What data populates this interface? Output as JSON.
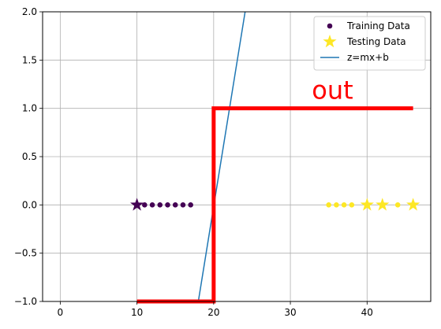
{
  "chart_data": {
    "type": "scatter",
    "title": "",
    "xlabel": "",
    "ylabel": "",
    "xlim": [
      -2.3,
      48.3
    ],
    "ylim": [
      -1.0,
      2.0
    ],
    "x_ticks": [
      0,
      10,
      20,
      30,
      40
    ],
    "x_tick_labels": [
      "0",
      "10",
      "20",
      "30",
      "40"
    ],
    "y_ticks": [
      -1.0,
      -0.5,
      0.0,
      0.5,
      1.0,
      1.5,
      2.0
    ],
    "y_tick_labels": [
      "−1.0",
      "−0.5",
      "0.0",
      "0.5",
      "1.0",
      "1.5",
      "2.0"
    ],
    "grid": true,
    "legend_position": "top-right",
    "series": [
      {
        "name": "Training Data",
        "kind": "scatter",
        "marker": "circle",
        "points": [
          {
            "x": 11,
            "y": 0,
            "color": "#440154"
          },
          {
            "x": 12,
            "y": 0,
            "color": "#440154"
          },
          {
            "x": 13,
            "y": 0,
            "color": "#440154"
          },
          {
            "x": 14,
            "y": 0,
            "color": "#440154"
          },
          {
            "x": 15,
            "y": 0,
            "color": "#440154"
          },
          {
            "x": 16,
            "y": 0,
            "color": "#440154"
          },
          {
            "x": 17,
            "y": 0,
            "color": "#440154"
          },
          {
            "x": 35,
            "y": 0,
            "color": "#fde725"
          },
          {
            "x": 36,
            "y": 0,
            "color": "#fde725"
          },
          {
            "x": 37,
            "y": 0,
            "color": "#fde725"
          },
          {
            "x": 38,
            "y": 0,
            "color": "#fde725"
          },
          {
            "x": 44,
            "y": 0,
            "color": "#fde725"
          }
        ],
        "legend_color": "#440154"
      },
      {
        "name": "Testing Data",
        "kind": "scatter",
        "marker": "star",
        "points": [
          {
            "x": 10,
            "y": 0,
            "color": "#440154"
          },
          {
            "x": 40,
            "y": 0,
            "color": "#fde725"
          },
          {
            "x": 42,
            "y": 0,
            "color": "#fde725"
          },
          {
            "x": 46,
            "y": 0,
            "color": "#fde725"
          }
        ],
        "legend_color": "#fde725"
      },
      {
        "name": "z=mx+b",
        "kind": "line",
        "color": "#1f77b4",
        "points": [
          {
            "x": 18,
            "y": -1.0
          },
          {
            "x": 24.1,
            "y": 2.0
          }
        ]
      },
      {
        "name": "",
        "kind": "step",
        "color": "#ff0000",
        "points": [
          {
            "x": 10,
            "y": -1.0
          },
          {
            "x": 20,
            "y": -1.0
          },
          {
            "x": 20,
            "y": 1.0
          },
          {
            "x": 46,
            "y": 1.0
          }
        ]
      }
    ],
    "annotations": [
      {
        "text": "out",
        "x": 32.8,
        "y": 1.1,
        "color": "#ff0000"
      }
    ]
  }
}
